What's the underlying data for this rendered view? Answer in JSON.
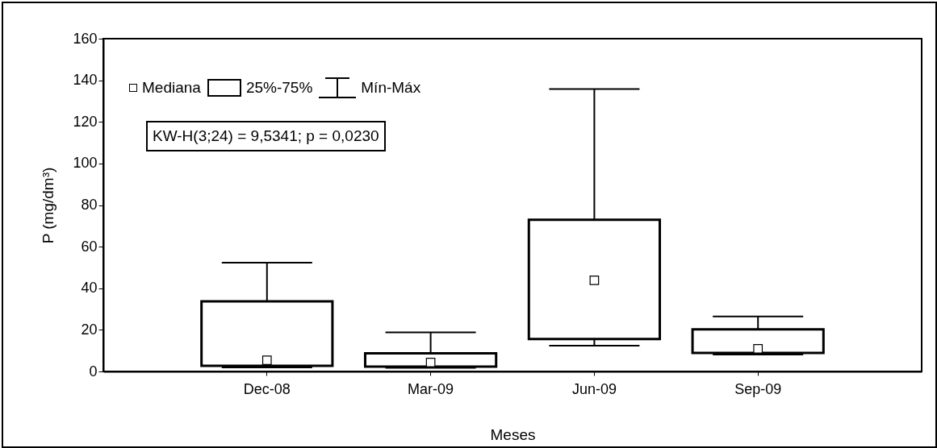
{
  "chart_data": {
    "type": "box",
    "categories": [
      "Dec-08",
      "Mar-09",
      "Jun-09",
      "Sep-09"
    ],
    "boxes": [
      {
        "low": 1.9,
        "q1": 2.7,
        "median": 5.4,
        "q3": 33.7,
        "high": 52.3
      },
      {
        "low": 1.7,
        "q1": 2.3,
        "median": 4.3,
        "q3": 8.7,
        "high": 18.8
      },
      {
        "low": 12.4,
        "q1": 15.6,
        "median": 43.8,
        "q3": 72.9,
        "high": 135.8
      },
      {
        "low": 8.1,
        "q1": 8.9,
        "median": 10.9,
        "q3": 20.2,
        "high": 26.4
      }
    ],
    "ylim": [
      0,
      160
    ],
    "yticks": [
      0,
      20,
      40,
      60,
      80,
      100,
      120,
      140,
      160
    ],
    "xlabel": "Meses",
    "ylabel": "P (mg/dm³)",
    "marker": "square",
    "annotations": [
      "Mediana",
      "25%-75%",
      "Mín-Máx",
      "KW-H(3;24) = 9,5341; p = 0,0230"
    ]
  }
}
